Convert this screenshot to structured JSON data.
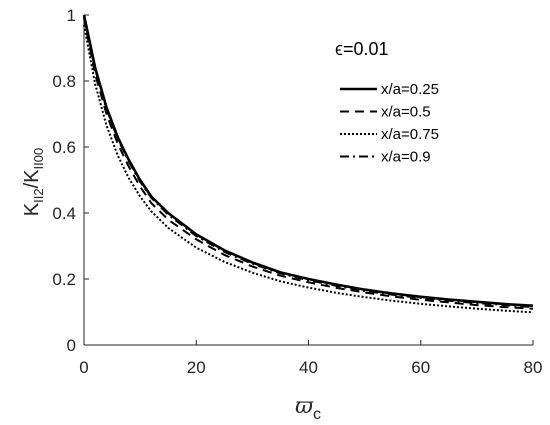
{
  "chart_data": {
    "type": "line",
    "xlabel_main": "ϖ",
    "xlabel_sub": "c",
    "ylabel_num_main": "K",
    "ylabel_num_sub": "II2",
    "ylabel_sep": "/",
    "ylabel_den_main": "K",
    "ylabel_den_sub": "II00",
    "xlim": [
      0,
      80
    ],
    "ylim": [
      0,
      1
    ],
    "xticks": [
      "0",
      "20",
      "40",
      "60",
      "80"
    ],
    "yticks": [
      "0",
      "0.2",
      "0.4",
      "0.6",
      "0.8",
      "1"
    ],
    "annotation": "ϵ=0.01",
    "grid": false,
    "legend_position": "top-right",
    "series": [
      {
        "name": "x/a=0.25",
        "style": "solid",
        "x": [
          0,
          2,
          4,
          6,
          8,
          10,
          12,
          15,
          20,
          25,
          30,
          35,
          40,
          45,
          50,
          55,
          60,
          65,
          70,
          75,
          80
        ],
        "y": [
          1.0,
          0.84,
          0.72,
          0.63,
          0.56,
          0.5,
          0.45,
          0.4,
          0.335,
          0.287,
          0.25,
          0.22,
          0.2,
          0.183,
          0.168,
          0.156,
          0.146,
          0.138,
          0.131,
          0.124,
          0.119
        ]
      },
      {
        "name": "x/a=0.5",
        "style": "dashed",
        "x": [
          0,
          2,
          4,
          6,
          8,
          10,
          12,
          15,
          20,
          25,
          30,
          35,
          40,
          45,
          50,
          55,
          60,
          65,
          70,
          75,
          80
        ],
        "y": [
          0.99,
          0.82,
          0.7,
          0.61,
          0.54,
          0.48,
          0.43,
          0.38,
          0.32,
          0.273,
          0.238,
          0.21,
          0.19,
          0.173,
          0.159,
          0.147,
          0.137,
          0.129,
          0.121,
          0.115,
          0.11
        ]
      },
      {
        "name": "x/a=0.75",
        "style": "dotted",
        "x": [
          0,
          2,
          4,
          6,
          8,
          10,
          12,
          15,
          20,
          25,
          30,
          35,
          40,
          45,
          50,
          55,
          60,
          65,
          70,
          75,
          80
        ],
        "y": [
          0.97,
          0.79,
          0.665,
          0.575,
          0.505,
          0.45,
          0.405,
          0.355,
          0.295,
          0.252,
          0.219,
          0.193,
          0.174,
          0.158,
          0.145,
          0.134,
          0.125,
          0.117,
          0.11,
          0.104,
          0.099
        ]
      },
      {
        "name": "x/a=0.9",
        "style": "dashdot",
        "x": [
          0,
          2,
          4,
          6,
          8,
          10,
          12,
          15,
          20,
          25,
          30,
          35,
          40,
          45,
          50,
          55,
          60,
          65,
          70,
          75,
          80
        ],
        "y": [
          0.995,
          0.835,
          0.715,
          0.625,
          0.555,
          0.495,
          0.446,
          0.395,
          0.33,
          0.282,
          0.246,
          0.217,
          0.196,
          0.179,
          0.164,
          0.152,
          0.142,
          0.134,
          0.127,
          0.121,
          0.115
        ]
      }
    ]
  }
}
